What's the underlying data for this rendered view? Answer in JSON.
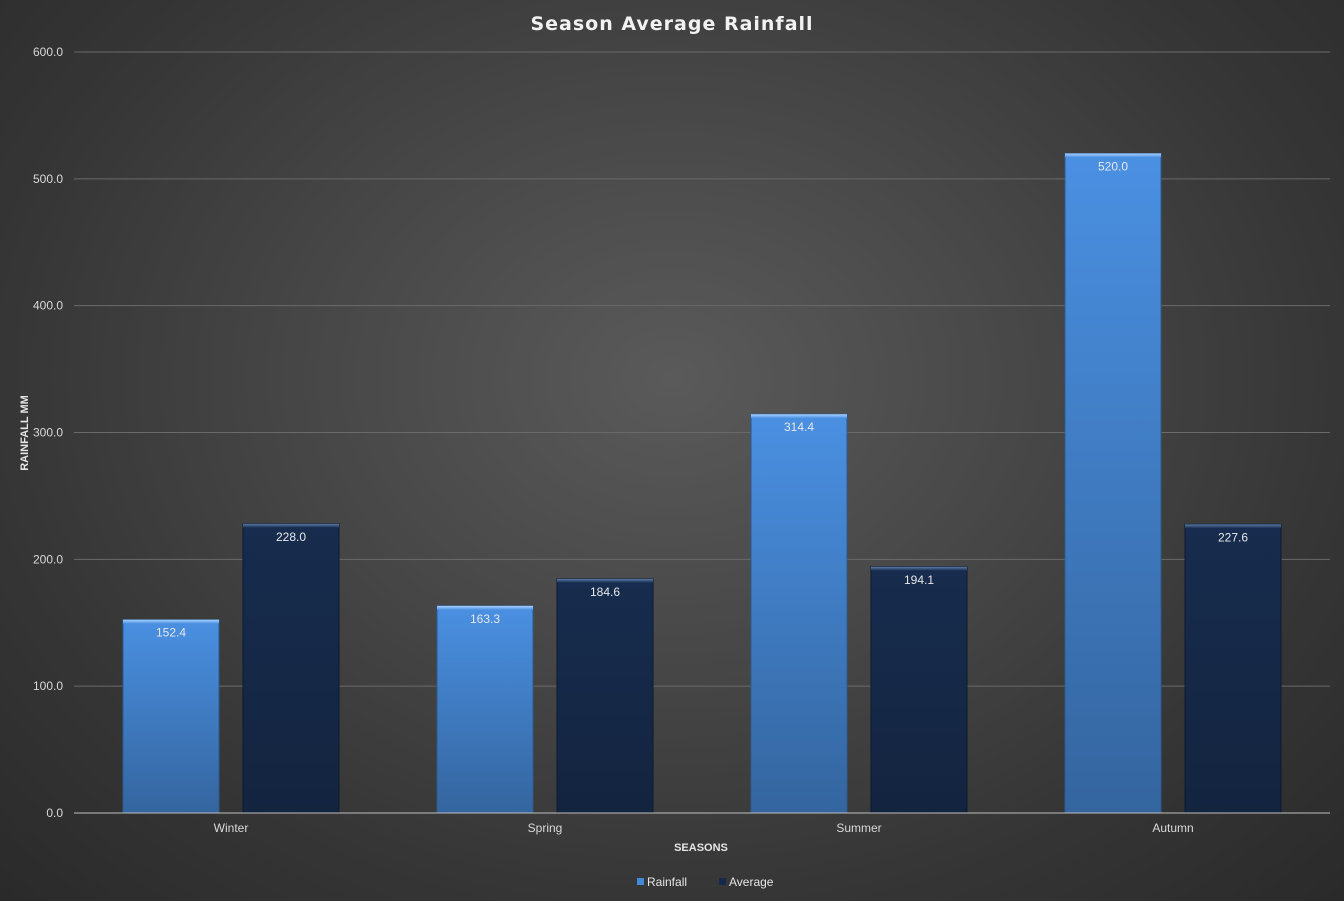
{
  "chart_data": {
    "type": "bar",
    "title": "Season Average Rainfall",
    "xlabel": "SEASONS",
    "ylabel": "RAINFALL MM",
    "categories": [
      "Winter",
      "Spring",
      "Summer",
      "Autumn"
    ],
    "series": [
      {
        "name": "Rainfall",
        "values": [
          152.4,
          163.3,
          314.4,
          520.0
        ],
        "color": "#4389d9"
      },
      {
        "name": "Average",
        "values": [
          228.0,
          184.6,
          194.1,
          227.6
        ],
        "color": "#16294a"
      }
    ],
    "ylim": [
      0,
      600
    ],
    "yticks": [
      "0.0",
      "100.0",
      "200.0",
      "300.0",
      "400.0",
      "500.0",
      "600.0"
    ],
    "data_labels": [
      [
        "152.4",
        "163.3",
        "314.4",
        "520.0"
      ],
      [
        "228.0",
        "184.6",
        "194.1",
        "227.6"
      ]
    ],
    "grid": true,
    "legend": "bottom"
  }
}
